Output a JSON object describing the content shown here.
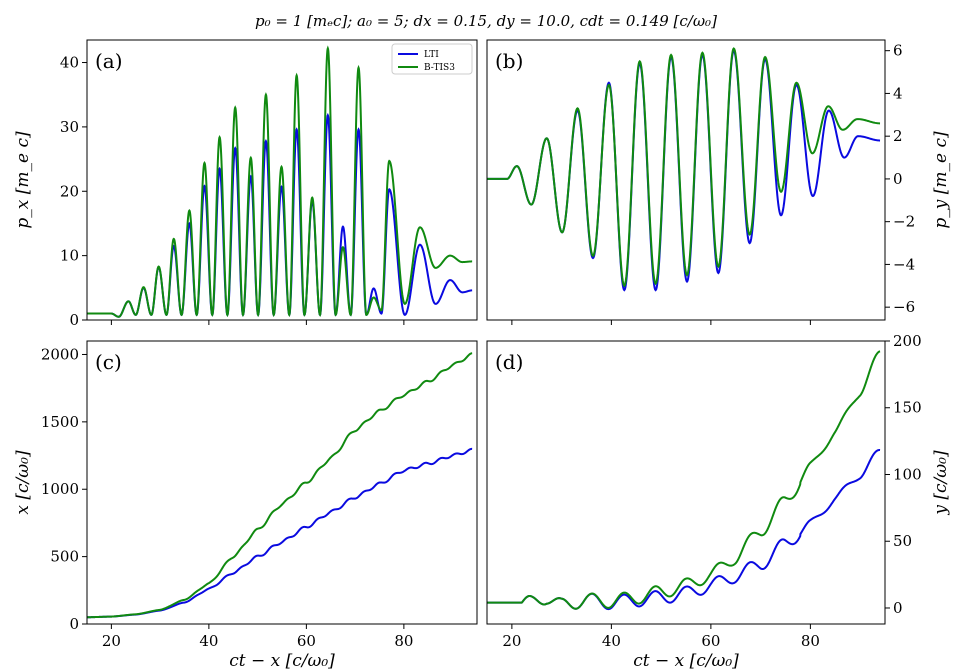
{
  "title": "p₀ = 1 [mₑc];  a₀ = 5;  dx = 0.15,  dy = 10.0,  cdt = 0.149 [c/ω₀]",
  "colors": {
    "LTI": "#0a0ae0",
    "B-TIS3": "#108a10"
  },
  "chart_data": [
    {
      "type": "line",
      "panel_label": "(a)",
      "ylabel": "p_x [m_e c]",
      "xlabel": "",
      "xlim": [
        15,
        95
      ],
      "ylim": [
        0,
        43.5
      ],
      "xticks": [
        20,
        40,
        60,
        80
      ],
      "yticks": [
        0,
        10,
        20,
        30,
        40
      ],
      "legend": {
        "placement": "top-right",
        "entries": [
          "LTI",
          "B-TIS3"
        ]
      },
      "series": [
        {
          "name": "LTI",
          "kind": "px",
          "peaks": [
            [
              15,
              1
            ],
            [
              20,
              1
            ],
            [
              23.5,
              2.9
            ],
            [
              26.6,
              5
            ],
            [
              29.7,
              8.2
            ],
            [
              32.8,
              11.5
            ],
            [
              36,
              15
            ],
            [
              39.1,
              20.8
            ],
            [
              42.2,
              23.5
            ],
            [
              45.4,
              26.7
            ],
            [
              48.6,
              22.3
            ],
            [
              51.7,
              27.8
            ],
            [
              54.9,
              20.7
            ],
            [
              58,
              29.6
            ],
            [
              61.2,
              18.5
            ],
            [
              64.4,
              31.8
            ],
            [
              67.5,
              14.5
            ],
            [
              70.7,
              29.6
            ],
            [
              73.8,
              4.9
            ],
            [
              77,
              20.3
            ],
            [
              83.3,
              11.7
            ],
            [
              89.5,
              6.2
            ],
            [
              94,
              4.6
            ]
          ],
          "troughs": [
            [
              21.5,
              0.5
            ],
            [
              25,
              0.8
            ],
            [
              28.2,
              0.8
            ],
            [
              31.3,
              0.8
            ],
            [
              34.4,
              0.8
            ],
            [
              37.5,
              0.8
            ],
            [
              40.7,
              0.8
            ],
            [
              43.8,
              0.8
            ],
            [
              47,
              0.8
            ],
            [
              50.1,
              0.8
            ],
            [
              53.3,
              0.8
            ],
            [
              56.5,
              0.8
            ],
            [
              59.6,
              0.8
            ],
            [
              62.8,
              0.8
            ],
            [
              66,
              0.8
            ],
            [
              69.1,
              0.8
            ],
            [
              72.3,
              0.8
            ],
            [
              75.4,
              1
            ],
            [
              80.2,
              0.8
            ],
            [
              86.5,
              2.5
            ],
            [
              92,
              4.3
            ]
          ]
        },
        {
          "name": "B-TIS3",
          "kind": "px",
          "peaks": [
            [
              15,
              1
            ],
            [
              20,
              1
            ],
            [
              23.5,
              2.9
            ],
            [
              26.6,
              5.1
            ],
            [
              29.7,
              8.3
            ],
            [
              32.8,
              12.6
            ],
            [
              36,
              17
            ],
            [
              39.1,
              24.4
            ],
            [
              42.2,
              28.4
            ],
            [
              45.4,
              33
            ],
            [
              48.6,
              25.2
            ],
            [
              51.7,
              35
            ],
            [
              54.9,
              23.8
            ],
            [
              58,
              38
            ],
            [
              61.2,
              19
            ],
            [
              64.4,
              42.2
            ],
            [
              67.5,
              11.3
            ],
            [
              70.7,
              39.2
            ],
            [
              73.8,
              3.5
            ],
            [
              77,
              24.7
            ],
            [
              83.3,
              14.4
            ],
            [
              89.5,
              10
            ],
            [
              94,
              9.1
            ]
          ],
          "troughs": [
            [
              21.5,
              0.5
            ],
            [
              25,
              0.8
            ],
            [
              28.2,
              0.8
            ],
            [
              31.3,
              0.8
            ],
            [
              34.4,
              0.8
            ],
            [
              37.5,
              0.8
            ],
            [
              40.7,
              0.8
            ],
            [
              43.8,
              0.8
            ],
            [
              47,
              0.8
            ],
            [
              50.1,
              0.8
            ],
            [
              53.3,
              0.8
            ],
            [
              56.5,
              0.8
            ],
            [
              59.6,
              0.8
            ],
            [
              62.8,
              0.8
            ],
            [
              66,
              0.8
            ],
            [
              69.1,
              0.8
            ],
            [
              72.3,
              0.8
            ],
            [
              75.4,
              1.5
            ],
            [
              80.2,
              2.5
            ],
            [
              86.5,
              8.1
            ],
            [
              92,
              9
            ]
          ]
        }
      ]
    },
    {
      "type": "line",
      "panel_label": "(b)",
      "ylabel": "p_y [m_e c]",
      "xlabel": "",
      "xlim": [
        15,
        95
      ],
      "ylim": [
        -6.6,
        6.5
      ],
      "xticks": [
        20,
        40,
        60,
        80
      ],
      "yticks": [
        -6,
        -4,
        -2,
        0,
        2,
        4,
        6
      ],
      "series": [
        {
          "name": "LTI",
          "kind": "py",
          "points": [
            [
              15,
              0
            ],
            [
              19,
              0
            ],
            [
              21,
              0.6
            ],
            [
              23.9,
              -1.2
            ],
            [
              27,
              1.9
            ],
            [
              30.1,
              -2.5
            ],
            [
              33.2,
              3.2
            ],
            [
              36.3,
              -3.7
            ],
            [
              39.5,
              4.5
            ],
            [
              42.6,
              -5.2
            ],
            [
              45.7,
              5.4
            ],
            [
              48.9,
              -5.2
            ],
            [
              52,
              5.7
            ],
            [
              55.2,
              -4.8
            ],
            [
              58.3,
              5.8
            ],
            [
              61.5,
              -4.4
            ],
            [
              64.6,
              6
            ],
            [
              67.8,
              -3
            ],
            [
              70.9,
              5.6
            ],
            [
              74.1,
              -1.7
            ],
            [
              77.2,
              4.4
            ],
            [
              80.5,
              -0.8
            ],
            [
              83.7,
              3.2
            ],
            [
              86.8,
              1
            ],
            [
              89.6,
              2
            ],
            [
              94,
              1.8
            ]
          ]
        },
        {
          "name": "B-TIS3",
          "kind": "py",
          "points": [
            [
              15,
              0
            ],
            [
              19,
              0
            ],
            [
              21,
              0.6
            ],
            [
              23.9,
              -1.2
            ],
            [
              27,
              1.9
            ],
            [
              30.1,
              -2.5
            ],
            [
              33.2,
              3.3
            ],
            [
              36.3,
              -3.6
            ],
            [
              39.5,
              4.4
            ],
            [
              42.6,
              -5
            ],
            [
              45.7,
              5.5
            ],
            [
              48.9,
              -4.9
            ],
            [
              52,
              5.8
            ],
            [
              55.2,
              -4.5
            ],
            [
              58.3,
              5.9
            ],
            [
              61.5,
              -4.1
            ],
            [
              64.6,
              6.1
            ],
            [
              67.8,
              -2.6
            ],
            [
              70.9,
              5.7
            ],
            [
              74.1,
              -0.6
            ],
            [
              77.2,
              4.5
            ],
            [
              80.4,
              1.2
            ],
            [
              83.6,
              3.4
            ],
            [
              86.5,
              2.3
            ],
            [
              89.5,
              2.8
            ],
            [
              94,
              2.6
            ]
          ]
        }
      ]
    },
    {
      "type": "line",
      "panel_label": "(c)",
      "ylabel": "x [c/ω₀]",
      "xlabel": "ct − x [c/ω₀]",
      "xlim": [
        15,
        95
      ],
      "ylim": [
        0,
        2100
      ],
      "xticks": [
        20,
        40,
        60,
        80
      ],
      "yticks": [
        0,
        500,
        1000,
        1500,
        2000
      ],
      "series": [
        {
          "name": "LTI",
          "kind": "x",
          "points": [
            [
              15,
              50
            ],
            [
              20,
              55
            ],
            [
              25,
              70
            ],
            [
              30,
              100
            ],
            [
              35,
              160
            ],
            [
              40,
              260
            ],
            [
              45,
              380
            ],
            [
              50,
              500
            ],
            [
              55,
              610
            ],
            [
              60,
              720
            ],
            [
              65,
              830
            ],
            [
              70,
              940
            ],
            [
              75,
              1040
            ],
            [
              80,
              1140
            ],
            [
              85,
              1190
            ],
            [
              90,
              1250
            ],
            [
              94,
              1290
            ]
          ]
        },
        {
          "name": "B-TIS3",
          "kind": "x",
          "points": [
            [
              15,
              50
            ],
            [
              20,
              55
            ],
            [
              25,
              72
            ],
            [
              30,
              105
            ],
            [
              35,
              180
            ],
            [
              40,
              300
            ],
            [
              45,
              500
            ],
            [
              50,
              700
            ],
            [
              55,
              890
            ],
            [
              60,
              1050
            ],
            [
              65,
              1230
            ],
            [
              70,
              1440
            ],
            [
              75,
              1580
            ],
            [
              80,
              1700
            ],
            [
              85,
              1800
            ],
            [
              90,
              1920
            ],
            [
              94,
              2000
            ]
          ]
        }
      ]
    },
    {
      "type": "line",
      "panel_label": "(d)",
      "ylabel": "y [c/ω₀]",
      "xlabel": "ct − x [c/ω₀]",
      "xlim": [
        15,
        95
      ],
      "ylim": [
        -12,
        200
      ],
      "xticks": [
        20,
        40,
        60,
        80
      ],
      "yticks": [
        0,
        50,
        100,
        150,
        200
      ],
      "series": [
        {
          "name": "LTI",
          "kind": "y",
          "points": [
            [
              15,
              4
            ],
            [
              20,
              4
            ],
            [
              24,
              4
            ],
            [
              27,
              8
            ],
            [
              30,
              2
            ],
            [
              35,
              6
            ],
            [
              40,
              4
            ],
            [
              45,
              6
            ],
            [
              50,
              8
            ],
            [
              55,
              11
            ],
            [
              60,
              17
            ],
            [
              65,
              24
            ],
            [
              70,
              33
            ],
            [
              75,
              48
            ],
            [
              80,
              63
            ],
            [
              85,
              82
            ],
            [
              90,
              100
            ],
            [
              94,
              117
            ]
          ]
        },
        {
          "name": "B-TIS3",
          "kind": "y",
          "points": [
            [
              15,
              4
            ],
            [
              20,
              4
            ],
            [
              24,
              4
            ],
            [
              27,
              8
            ],
            [
              30,
              2
            ],
            [
              35,
              6
            ],
            [
              40,
              5
            ],
            [
              45,
              8
            ],
            [
              50,
              12
            ],
            [
              55,
              17
            ],
            [
              60,
              25
            ],
            [
              65,
              38
            ],
            [
              70,
              58
            ],
            [
              75,
              80
            ],
            [
              80,
              106
            ],
            [
              85,
              132
            ],
            [
              90,
              162
            ],
            [
              94,
              191
            ]
          ]
        }
      ]
    }
  ]
}
